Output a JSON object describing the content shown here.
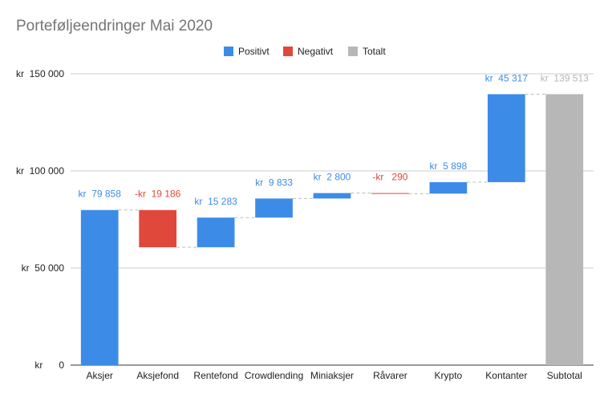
{
  "chart_data": {
    "type": "waterfall",
    "title": "Porteføljeendringer Mai 2020",
    "legend": {
      "position": "top-center",
      "items": [
        {
          "label": "Positivt",
          "color": "#3c8ce7"
        },
        {
          "label": "Negativt",
          "color": "#e0483b"
        },
        {
          "label": "Totalt",
          "color": "#b7b7b7"
        }
      ]
    },
    "colors": {
      "positive": "#3c8ce7",
      "negative": "#e0483b",
      "total": "#b7b7b7"
    },
    "ylim": [
      0,
      150000
    ],
    "yticks": [
      {
        "value": 0,
        "label": "kr      0"
      },
      {
        "value": 50000,
        "label": "kr  50 000"
      },
      {
        "value": 100000,
        "label": "kr  100 000"
      },
      {
        "value": 150000,
        "label": "kr  150 000"
      }
    ],
    "categories": [
      "Aksjer",
      "Aksjefond",
      "Rentefond",
      "Crowdlending",
      "Miniaksjer",
      "Råvarer",
      "Krypto",
      "Kontanter",
      "Subtotal"
    ],
    "values": [
      79858,
      -19186,
      15283,
      9833,
      2800,
      -290,
      5898,
      45317,
      139513
    ],
    "kinds": [
      "positive",
      "negative",
      "positive",
      "positive",
      "positive",
      "negative",
      "positive",
      "positive",
      "total"
    ],
    "labels": [
      "kr  79 858",
      "-kr  19 186",
      "kr  15 283",
      "kr  9 833",
      "kr  2 800",
      "-kr   290",
      "kr  5 898",
      "kr  45 317",
      "kr  139 513"
    ],
    "grid": true
  }
}
